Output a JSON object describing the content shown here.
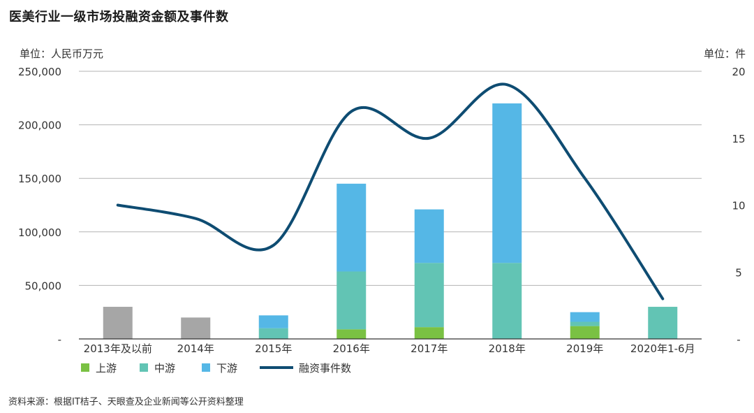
{
  "title": "医美行业一级市场投融资金额及事件数",
  "unit_left": "单位：人民币万元",
  "unit_right": "单位：件",
  "source": "资料来源：根据IT桔子、天眼查及企业新闻等公开资料整理",
  "colors": {
    "gray": "#a6a6a6",
    "upstream": "#7ac143",
    "midstream": "#62c4b4",
    "downstream": "#55b7e6",
    "line": "#0e4c72",
    "grid": "#b3b3b3",
    "axis": "#333333"
  },
  "chart_data": {
    "type": "bar",
    "categories": [
      "2013年及以前",
      "2014年",
      "2015年",
      "2016年",
      "2017年",
      "2018年",
      "2019年",
      "2020年1-6月"
    ],
    "ylim_left": [
      0,
      250000
    ],
    "ylim_right": [
      0,
      20
    ],
    "left_ticks": [
      "-",
      "50,000",
      "100,000",
      "150,000",
      "200,000",
      "250,000"
    ],
    "left_tick_values": [
      0,
      50000,
      100000,
      150000,
      200000,
      250000
    ],
    "right_ticks": [
      "-",
      "5",
      "10",
      "15",
      "20"
    ],
    "right_tick_values": [
      0,
      5,
      10,
      15,
      20
    ],
    "grid": true,
    "legend_position": "bottom-left",
    "unsegmented_total": [
      30000,
      20000,
      null,
      null,
      null,
      null,
      null,
      null
    ],
    "series": [
      {
        "name": "上游",
        "type": "bar",
        "values": [
          null,
          null,
          0,
          9000,
          11000,
          0,
          12000,
          0
        ]
      },
      {
        "name": "中游",
        "type": "bar",
        "values": [
          null,
          null,
          10000,
          54000,
          60000,
          71000,
          4000,
          30000
        ]
      },
      {
        "name": "下游",
        "type": "bar",
        "values": [
          null,
          null,
          12000,
          82000,
          50000,
          149000,
          9000,
          0
        ]
      },
      {
        "name": "融资事件数",
        "type": "line",
        "axis": "right",
        "values": [
          10,
          9,
          7,
          17,
          15,
          19,
          12,
          3
        ]
      }
    ]
  }
}
